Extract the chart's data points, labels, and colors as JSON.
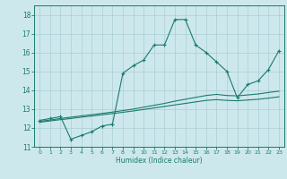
{
  "xlabel": "Humidex (Indice chaleur)",
  "xlim": [
    -0.5,
    23.5
  ],
  "ylim": [
    11,
    18.5
  ],
  "yticks": [
    11,
    12,
    13,
    14,
    15,
    16,
    17,
    18
  ],
  "xticks": [
    0,
    1,
    2,
    3,
    4,
    5,
    6,
    7,
    8,
    9,
    10,
    11,
    12,
    13,
    14,
    15,
    16,
    17,
    18,
    19,
    20,
    21,
    22,
    23
  ],
  "bg_color": "#cde8ed",
  "line_color": "#1a7a6e",
  "grid_color": "#a8cdd4",
  "line1_x": [
    0,
    1,
    2,
    3,
    4,
    5,
    6,
    7,
    8,
    9,
    10,
    11,
    12,
    13,
    14,
    15,
    16,
    17,
    18,
    19,
    20,
    21,
    22,
    23
  ],
  "line1_y": [
    12.4,
    12.5,
    12.6,
    11.4,
    11.6,
    11.8,
    12.1,
    12.2,
    14.9,
    15.3,
    15.6,
    16.4,
    16.4,
    17.75,
    17.75,
    16.4,
    16.0,
    15.5,
    15.0,
    13.6,
    14.3,
    14.5,
    15.1,
    16.1
  ],
  "line2_x": [
    0,
    1,
    2,
    3,
    4,
    5,
    6,
    7,
    8,
    9,
    10,
    11,
    12,
    13,
    14,
    15,
    16,
    17,
    18,
    19,
    20,
    21,
    22,
    23
  ],
  "line2_y": [
    12.35,
    12.42,
    12.5,
    12.57,
    12.64,
    12.7,
    12.77,
    12.84,
    12.92,
    13.0,
    13.1,
    13.2,
    13.3,
    13.42,
    13.52,
    13.62,
    13.72,
    13.78,
    13.72,
    13.7,
    13.75,
    13.8,
    13.88,
    13.95
  ],
  "line3_x": [
    0,
    1,
    2,
    3,
    4,
    5,
    6,
    7,
    8,
    9,
    10,
    11,
    12,
    13,
    14,
    15,
    16,
    17,
    18,
    19,
    20,
    21,
    22,
    23
  ],
  "line3_y": [
    12.3,
    12.37,
    12.44,
    12.5,
    12.57,
    12.63,
    12.7,
    12.76,
    12.83,
    12.9,
    12.98,
    13.06,
    13.14,
    13.22,
    13.3,
    13.38,
    13.46,
    13.5,
    13.46,
    13.44,
    13.48,
    13.52,
    13.58,
    13.65
  ]
}
